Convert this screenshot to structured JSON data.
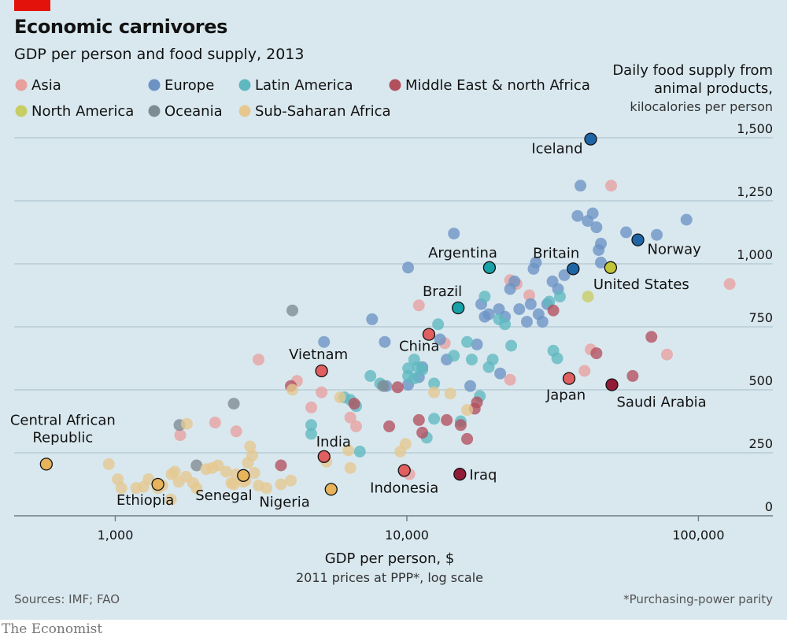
{
  "header": {
    "title": "Economic carnivores",
    "subtitle": "GDP per person and food supply, 2013"
  },
  "y_title": {
    "line1": "Daily food supply from",
    "line2": "animal products,",
    "unit": "kilocalories per person"
  },
  "x_title": {
    "main": "GDP per person, $",
    "sub": "2011 prices at PPP*, log scale"
  },
  "footer": {
    "sources": "Sources: IMF; FAO",
    "footnote": "*Purchasing-power parity",
    "publisher": "The Economist"
  },
  "chart_data": {
    "type": "scatter",
    "x_scale": "log",
    "xlim": [
      450,
      180000
    ],
    "ylim": [
      0,
      1500
    ],
    "x_ticks": [
      {
        "v": 1000,
        "t": "1,000"
      },
      {
        "v": 10000,
        "t": "10,000"
      },
      {
        "v": 100000,
        "t": "100,000"
      }
    ],
    "y_ticks": [
      {
        "v": 0,
        "t": "0"
      },
      {
        "v": 250,
        "t": "250"
      },
      {
        "v": 500,
        "t": "500"
      },
      {
        "v": 750,
        "t": "750"
      },
      {
        "v": 1000,
        "t": "1,000"
      },
      {
        "v": 1250,
        "t": "1,250"
      },
      {
        "v": 1500,
        "t": "1,500"
      }
    ],
    "grid": true,
    "legend_position": "top-left",
    "colors": {
      "asia": "#e8a09f",
      "europe": "#6c93c4",
      "latam": "#5fb8c0",
      "mena": "#b2505e",
      "namerica": "#c7cd62",
      "oceania": "#7f8b92",
      "ssa": "#e6c88f"
    },
    "highlight_colors": {
      "asia": "#e05f61",
      "europe": "#1e65a6",
      "latam": "#17a1a9",
      "mena": "#921c37",
      "namerica": "#c2c43a",
      "ssa": "#e7b35b"
    },
    "series": [
      {
        "key": "asia",
        "name": "Asia",
        "points": [
          [
            1670,
            320
          ],
          [
            2200,
            370
          ],
          [
            2600,
            335
          ],
          [
            3100,
            620
          ],
          [
            4200,
            535
          ],
          [
            4700,
            430
          ],
          [
            5100,
            490
          ],
          [
            6400,
            390
          ],
          [
            6700,
            355
          ],
          [
            9800,
            175
          ],
          [
            10200,
            165
          ],
          [
            11000,
            835
          ],
          [
            13500,
            685
          ],
          [
            22600,
            540
          ],
          [
            26300,
            875
          ],
          [
            22600,
            935
          ],
          [
            23800,
            920
          ],
          [
            40700,
            575
          ],
          [
            42700,
            660
          ],
          [
            50200,
            1310
          ],
          [
            78000,
            640
          ],
          [
            128000,
            920
          ]
        ]
      },
      {
        "key": "europe",
        "name": "Europe",
        "points": [
          [
            10100,
            985
          ],
          [
            14500,
            1120
          ],
          [
            7600,
            780
          ],
          [
            8400,
            690
          ],
          [
            10100,
            520
          ],
          [
            11000,
            550
          ],
          [
            11300,
            590
          ],
          [
            13700,
            620
          ],
          [
            13000,
            700
          ],
          [
            16500,
            515
          ],
          [
            17400,
            680
          ],
          [
            18000,
            840
          ],
          [
            18500,
            790
          ],
          [
            19100,
            800
          ],
          [
            20700,
            820
          ],
          [
            20900,
            565
          ],
          [
            21700,
            790
          ],
          [
            22600,
            900
          ],
          [
            23400,
            930
          ],
          [
            24300,
            820
          ],
          [
            25800,
            770
          ],
          [
            26600,
            840
          ],
          [
            27200,
            980
          ],
          [
            27700,
            1005
          ],
          [
            28300,
            800
          ],
          [
            29200,
            770
          ],
          [
            30300,
            840
          ],
          [
            31600,
            930
          ],
          [
            33000,
            900
          ],
          [
            34700,
            955
          ],
          [
            38500,
            1190
          ],
          [
            39400,
            1310
          ],
          [
            41700,
            1170
          ],
          [
            43400,
            1200
          ],
          [
            44700,
            1145
          ],
          [
            45500,
            1055
          ],
          [
            46300,
            1080
          ],
          [
            46300,
            1005
          ],
          [
            56500,
            1125
          ],
          [
            72000,
            1115
          ],
          [
            91000,
            1175
          ],
          [
            5200,
            690
          ],
          [
            8500,
            515
          ]
        ]
      },
      {
        "key": "latam",
        "name": "Latin America",
        "points": [
          [
            4700,
            360
          ],
          [
            4700,
            325
          ],
          [
            6100,
            470
          ],
          [
            6400,
            460
          ],
          [
            6700,
            435
          ],
          [
            6900,
            255
          ],
          [
            7500,
            555
          ],
          [
            8100,
            525
          ],
          [
            10100,
            555
          ],
          [
            10100,
            585
          ],
          [
            10600,
            545
          ],
          [
            10600,
            620
          ],
          [
            10900,
            590
          ],
          [
            11300,
            580
          ],
          [
            11700,
            310
          ],
          [
            12400,
            525
          ],
          [
            12400,
            385
          ],
          [
            12800,
            760
          ],
          [
            14500,
            635
          ],
          [
            15300,
            375
          ],
          [
            16100,
            690
          ],
          [
            16700,
            620
          ],
          [
            17800,
            475
          ],
          [
            18500,
            870
          ],
          [
            19100,
            590
          ],
          [
            19700,
            620
          ],
          [
            20700,
            780
          ],
          [
            21700,
            760
          ],
          [
            22800,
            675
          ],
          [
            30800,
            850
          ],
          [
            31800,
            655
          ],
          [
            32800,
            625
          ],
          [
            33500,
            870
          ]
        ]
      },
      {
        "key": "mena",
        "name": "Middle East & north Africa",
        "points": [
          [
            3700,
            200
          ],
          [
            4000,
            515
          ],
          [
            6600,
            445
          ],
          [
            8700,
            355
          ],
          [
            9300,
            510
          ],
          [
            11000,
            380
          ],
          [
            11300,
            330
          ],
          [
            13700,
            380
          ],
          [
            15300,
            360
          ],
          [
            16100,
            305
          ],
          [
            17100,
            425
          ],
          [
            17400,
            450
          ],
          [
            31800,
            815
          ],
          [
            44700,
            645
          ],
          [
            59500,
            555
          ],
          [
            69000,
            710
          ]
        ]
      },
      {
        "key": "namerica",
        "name": "North America",
        "points": [
          [
            41800,
            870
          ]
        ]
      },
      {
        "key": "oceania",
        "name": "Oceania",
        "points": [
          [
            1660,
            360
          ],
          [
            1900,
            200
          ],
          [
            2550,
            445
          ],
          [
            4050,
            815
          ],
          [
            8300,
            515
          ]
        ]
      },
      {
        "key": "ssa",
        "name": "Sub-Saharan Africa",
        "points": [
          [
            950,
            205
          ],
          [
            1020,
            145
          ],
          [
            1050,
            110
          ],
          [
            1180,
            110
          ],
          [
            1250,
            115
          ],
          [
            1300,
            145
          ],
          [
            1400,
            110
          ],
          [
            1450,
            120
          ],
          [
            1550,
            65
          ],
          [
            1560,
            165
          ],
          [
            1600,
            175
          ],
          [
            1650,
            135
          ],
          [
            1750,
            155
          ],
          [
            1760,
            365
          ],
          [
            1850,
            130
          ],
          [
            1900,
            110
          ],
          [
            2050,
            185
          ],
          [
            2150,
            190
          ],
          [
            2250,
            200
          ],
          [
            2400,
            175
          ],
          [
            2500,
            130
          ],
          [
            2550,
            125
          ],
          [
            2600,
            165
          ],
          [
            2750,
            135
          ],
          [
            2800,
            140
          ],
          [
            2850,
            210
          ],
          [
            2900,
            275
          ],
          [
            2950,
            240
          ],
          [
            3000,
            170
          ],
          [
            3100,
            120
          ],
          [
            3300,
            110
          ],
          [
            3700,
            125
          ],
          [
            4000,
            140
          ],
          [
            4050,
            500
          ],
          [
            5300,
            215
          ],
          [
            5900,
            470
          ],
          [
            6300,
            260
          ],
          [
            6400,
            190
          ],
          [
            9500,
            255
          ],
          [
            9900,
            285
          ],
          [
            12400,
            490
          ],
          [
            14100,
            485
          ],
          [
            16100,
            420
          ]
        ]
      }
    ],
    "labeled_points": [
      {
        "name": "Iceland",
        "group": "europe",
        "x": 42700,
        "y": 1495
      },
      {
        "name": "Norway",
        "group": "europe",
        "x": 62000,
        "y": 1095
      },
      {
        "name": "Britain",
        "group": "europe",
        "x": 37200,
        "y": 980
      },
      {
        "name": "United States",
        "group": "namerica",
        "x": 50000,
        "y": 985
      },
      {
        "name": "Argentina",
        "group": "latam",
        "x": 19200,
        "y": 985
      },
      {
        "name": "Brazil",
        "group": "latam",
        "x": 15000,
        "y": 825
      },
      {
        "name": "China",
        "group": "asia",
        "x": 11900,
        "y": 720
      },
      {
        "name": "Japan",
        "group": "asia",
        "x": 36000,
        "y": 545
      },
      {
        "name": "Saudi Arabia",
        "group": "mena",
        "x": 50500,
        "y": 520
      },
      {
        "name": "Vietnam",
        "group": "asia",
        "x": 5100,
        "y": 575
      },
      {
        "name": "India",
        "group": "asia",
        "x": 5200,
        "y": 235
      },
      {
        "name": "Indonesia",
        "group": "asia",
        "x": 9800,
        "y": 180
      },
      {
        "name": "Iraq",
        "group": "mena",
        "x": 15200,
        "y": 165
      },
      {
        "name": "Nigeria",
        "group": "ssa",
        "x": 5500,
        "y": 105
      },
      {
        "name": "Senegal",
        "group": "ssa",
        "x": 2750,
        "y": 160
      },
      {
        "name": "Ethiopia",
        "group": "ssa",
        "x": 1400,
        "y": 125
      },
      {
        "name": "Central African Republic",
        "group": "ssa",
        "x": 580,
        "y": 205
      }
    ]
  }
}
